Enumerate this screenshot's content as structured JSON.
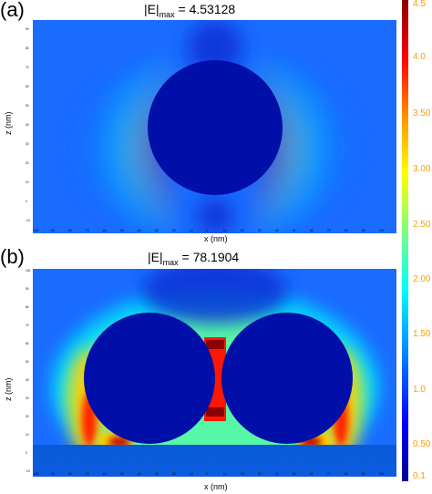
{
  "panels": [
    {
      "letter": "(a)",
      "title_main": "|E|",
      "title_sub": "max",
      "title_value": "= 4.53128",
      "xlabel": "x (nm)",
      "zlabel": "z (nm)",
      "x_ticks": [
        "-100",
        "-90",
        "-80",
        "-70",
        "-60",
        "-50",
        "-40",
        "-30",
        "-20",
        "-10",
        "0",
        "10",
        "20",
        "30",
        "40",
        "50",
        "60",
        "70",
        "80",
        "90",
        "100"
      ],
      "z_ticks": [
        "90",
        "80",
        "70",
        "60",
        "50",
        "40",
        "30",
        "20",
        "10",
        "0",
        "-10"
      ]
    },
    {
      "letter": "(b)",
      "title_main": "|E|",
      "title_sub": "max",
      "title_value": "= 78.1904",
      "xlabel": "x (nm)",
      "zlabel": "z (nm)",
      "x_ticks": [
        "-100",
        "-90",
        "-80",
        "-70",
        "-60",
        "-50",
        "-40",
        "-30",
        "-20",
        "-10",
        "0",
        "10",
        "20",
        "30",
        "40",
        "50",
        "60",
        "70",
        "80",
        "90",
        "100"
      ],
      "z_ticks": [
        "100",
        "90",
        "80",
        "70",
        "60",
        "50",
        "40",
        "30",
        "20",
        "10",
        "0",
        "-10"
      ]
    }
  ],
  "colorbar": {
    "ticks": [
      "4.5",
      "4.0",
      "3.50",
      "3.00",
      "2.50",
      "2.00",
      "1.50",
      "1.0",
      "0.50",
      "0.1"
    ],
    "colors": [
      "#8b0000",
      "#ff0000",
      "#ff9a00",
      "#ffff00",
      "#80ff80",
      "#00ffff",
      "#0080ff",
      "#0000ff",
      "#000090"
    ]
  }
}
